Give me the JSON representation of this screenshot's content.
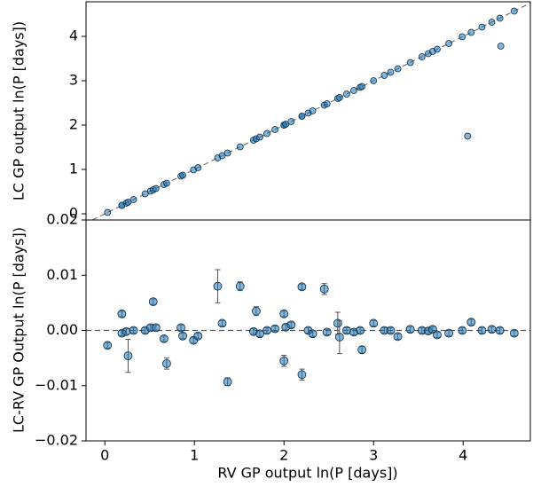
{
  "chart_data": [
    {
      "type": "scatter",
      "y_label": "LC GP output ln(P [days])",
      "x": [
        0.03,
        0.19,
        0.19,
        0.24,
        0.26,
        0.32,
        0.45,
        0.51,
        0.54,
        0.57,
        0.66,
        0.69,
        0.85,
        0.87,
        0.99,
        1.04,
        1.26,
        1.31,
        1.37,
        1.51,
        1.66,
        1.69,
        1.73,
        1.81,
        1.9,
        2.0,
        2.0,
        2.02,
        2.08,
        2.2,
        2.2,
        2.27,
        2.32,
        2.45,
        2.48,
        2.6,
        2.62,
        2.7,
        2.78,
        2.85,
        2.87,
        3.0,
        3.12,
        3.19,
        3.27,
        3.41,
        3.54,
        3.61,
        3.66,
        3.71,
        3.84,
        3.99,
        4.09,
        4.21,
        4.32,
        4.41,
        4.57,
        4.05,
        4.42
      ],
      "values": [
        0.03,
        0.19,
        0.19,
        0.24,
        0.26,
        0.32,
        0.45,
        0.51,
        0.54,
        0.57,
        0.66,
        0.69,
        0.85,
        0.87,
        0.99,
        1.04,
        1.26,
        1.31,
        1.37,
        1.51,
        1.66,
        1.69,
        1.73,
        1.81,
        1.9,
        2.0,
        2.0,
        2.02,
        2.08,
        2.2,
        2.2,
        2.27,
        2.32,
        2.45,
        2.48,
        2.6,
        2.62,
        2.7,
        2.78,
        2.85,
        2.87,
        3.0,
        3.12,
        3.19,
        3.27,
        3.41,
        3.54,
        3.61,
        3.66,
        3.71,
        3.84,
        3.99,
        4.09,
        4.21,
        4.32,
        4.41,
        4.57,
        1.75,
        3.78
      ],
      "color": "#1f77b4",
      "xlim": [
        -0.21,
        4.75
      ],
      "ylim": [
        -0.14,
        4.78
      ],
      "yticks": [
        0,
        1,
        2,
        3,
        4
      ],
      "diagonal_line": true
    },
    {
      "type": "errorbar",
      "x_label": "RV GP output ln(P [days])",
      "y_label": "LC-RV GP Output ln(P [days])",
      "x": [
        0.03,
        0.19,
        0.19,
        0.24,
        0.26,
        0.32,
        0.45,
        0.51,
        0.54,
        0.57,
        0.66,
        0.69,
        0.85,
        0.87,
        0.99,
        1.04,
        1.26,
        1.31,
        1.37,
        1.51,
        1.66,
        1.69,
        1.73,
        1.81,
        1.9,
        2.0,
        2.0,
        2.02,
        2.08,
        2.2,
        2.2,
        2.27,
        2.32,
        2.45,
        2.48,
        2.6,
        2.62,
        2.7,
        2.78,
        2.85,
        2.87,
        3.0,
        3.12,
        3.19,
        3.27,
        3.41,
        3.54,
        3.61,
        3.66,
        3.71,
        3.84,
        3.99,
        4.09,
        4.21,
        4.32,
        4.41,
        4.57
      ],
      "values": [
        -0.0027,
        0.003,
        -0.0005,
        -0.0002,
        -0.0046,
        0.0,
        0.0,
        0.0005,
        0.0052,
        0.0005,
        -0.0015,
        -0.006,
        0.0005,
        -0.001,
        -0.0018,
        -0.001,
        0.008,
        0.0013,
        -0.0093,
        0.008,
        -0.0002,
        0.0035,
        -0.0006,
        0.0,
        0.0003,
        0.003,
        -0.0055,
        0.0006,
        0.001,
        0.0079,
        -0.008,
        0.0,
        -0.0006,
        0.0075,
        -0.0003,
        0.0013,
        -0.0012,
        0.0,
        -0.0003,
        0.0,
        -0.0035,
        0.0013,
        0.0,
        0.0,
        -0.0011,
        0.0002,
        0.0,
        -0.0001,
        0.0002,
        -0.0008,
        -0.0005,
        0.0,
        0.0015,
        0.0,
        0.0002,
        0.0,
        -0.0005
      ],
      "errors": [
        0.0005,
        0.0005,
        0.0005,
        0.0005,
        0.003,
        0.0005,
        0.0005,
        0.0005,
        0.0005,
        0.0005,
        0.0005,
        0.001,
        0.0005,
        0.0005,
        0.0005,
        0.0005,
        0.003,
        0.0005,
        0.0007,
        0.0008,
        0.0005,
        0.0008,
        0.0005,
        0.0005,
        0.0005,
        0.0005,
        0.001,
        0.0005,
        0.0005,
        0.0005,
        0.001,
        0.0005,
        0.0005,
        0.001,
        0.0005,
        0.002,
        0.003,
        0.0005,
        0.0005,
        0.0005,
        0.0006,
        0.0005,
        0.0005,
        0.0005,
        0.0005,
        0.0005,
        0.0005,
        0.0005,
        0.0005,
        0.0005,
        0.0005,
        0.0005,
        0.0005,
        0.0005,
        0.0005,
        0.0005,
        0.0005
      ],
      "color": "#1f77b4",
      "error_color": "#555555",
      "xlim": [
        -0.21,
        4.75
      ],
      "ylim": [
        -0.02,
        0.02
      ],
      "xticks": [
        0,
        1,
        2,
        3,
        4
      ],
      "yticks": [
        {
          "value": -0.02,
          "label": "−0.02"
        },
        {
          "value": -0.01,
          "label": "−0.01"
        },
        {
          "value": 0,
          "label": "0.00"
        },
        0.01,
        0.02
      ],
      "zero_line": true
    }
  ]
}
